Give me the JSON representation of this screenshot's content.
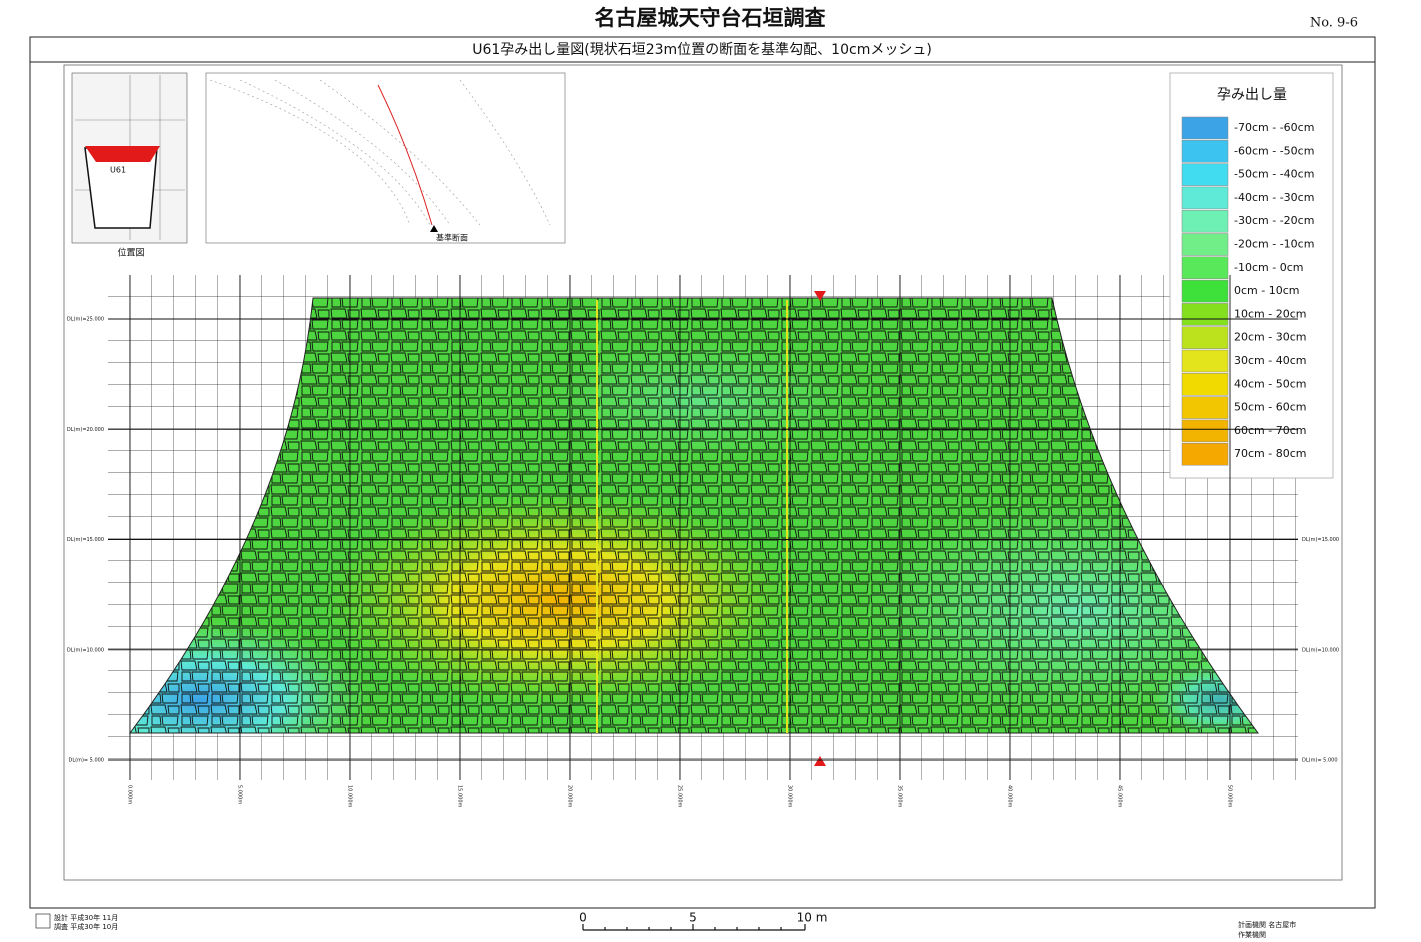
{
  "header": {
    "title": "名古屋城天守台石垣調査",
    "page_no": "No. 9-6"
  },
  "figure": {
    "title": "U61孕み出し量図(現状石垣23m位置の断面を基準勾配、10cmメッシュ)",
    "location_map": {
      "label": "位置図",
      "marker": "U61"
    },
    "section": {
      "label": "基準断面"
    },
    "legend": {
      "title": "孕み出し量",
      "items": [
        {
          "label": "-70cm - -60cm",
          "color": "#3ba3e6"
        },
        {
          "label": "-60cm - -50cm",
          "color": "#3cc3f0"
        },
        {
          "label": "-50cm - -40cm",
          "color": "#42dcf0"
        },
        {
          "label": "-40cm - -30cm",
          "color": "#5eead6"
        },
        {
          "label": "-30cm - -20cm",
          "color": "#6eefb4"
        },
        {
          "label": "-20cm - -10cm",
          "color": "#72ee88"
        },
        {
          "label": "-10cm - 0cm",
          "color": "#58e85a"
        },
        {
          "label": "0cm - 10cm",
          "color": "#3ee03a"
        },
        {
          "label": "10cm - 20cm",
          "color": "#84e01e"
        },
        {
          "label": "20cm - 30cm",
          "color": "#bce21e"
        },
        {
          "label": "30cm - 40cm",
          "color": "#e4e41c"
        },
        {
          "label": "40cm - 50cm",
          "color": "#f0da00"
        },
        {
          "label": "50cm - 60cm",
          "color": "#f2c600"
        },
        {
          "label": "60cm - 70cm",
          "color": "#f2b400"
        },
        {
          "label": "70cm - 80cm",
          "color": "#f5a800"
        }
      ]
    },
    "y_axis_labels": [
      "DL(m)=25.000",
      "DL(m)=20.000",
      "DL(m)=15.000",
      "DL(m)=10.000",
      "DL(m)= 5.000"
    ],
    "x_axis_labels": [
      "0.000m",
      "5.000m",
      "10.000m",
      "15.000m",
      "20.000m",
      "25.000m",
      "30.000m",
      "35.000m",
      "40.000m",
      "45.000m",
      "50.000m"
    ]
  },
  "scale_bar": {
    "labels": [
      "0",
      "5",
      "10 m"
    ]
  },
  "footer": {
    "left": [
      "設計 平成30年 11月",
      "調査 平成30年 10月"
    ],
    "right": [
      "計画機関 名古屋市",
      "作業機関"
    ]
  }
}
